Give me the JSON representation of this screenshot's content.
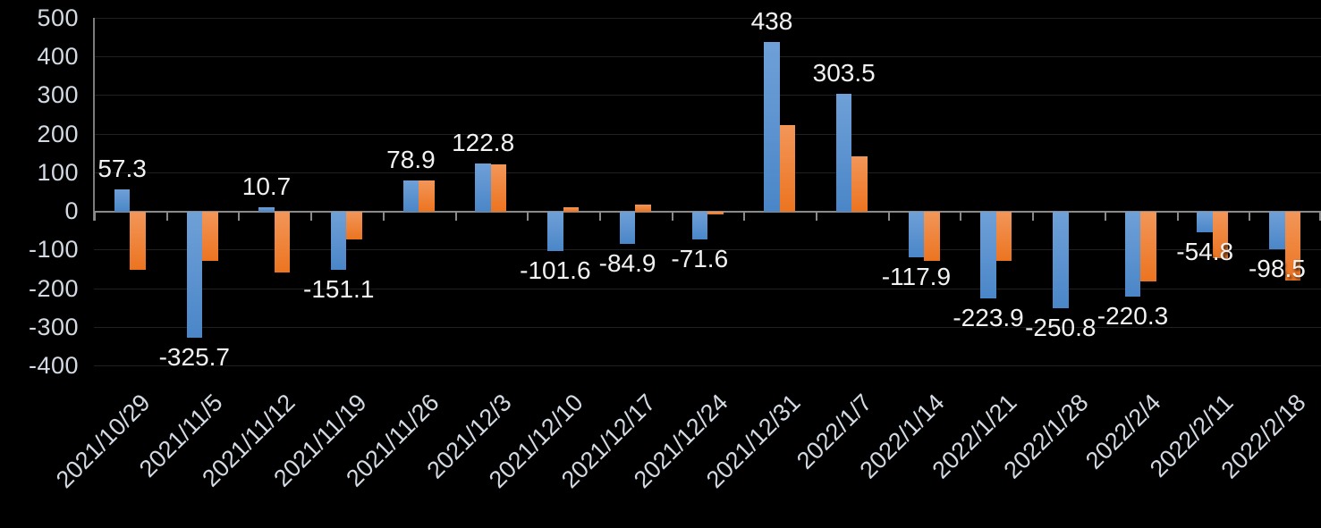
{
  "chart_data": {
    "type": "bar",
    "title": "",
    "xlabel": "",
    "ylabel": "",
    "categories": [
      "2021/10/29",
      "2021/11/5",
      "2021/11/12",
      "2021/11/19",
      "2021/11/26",
      "2021/12/3",
      "2021/12/10",
      "2021/12/17",
      "2021/12/24",
      "2021/12/31",
      "2022/1/7",
      "2022/1/14",
      "2022/1/21",
      "2022/1/28",
      "2022/2/4",
      "2022/2/11",
      "2022/2/18"
    ],
    "series": [
      {
        "name": "blue-series",
        "color_top": "#6FA0D7",
        "color_bottom": "#4A86C8",
        "values": [
          57.3,
          -325.7,
          10.7,
          -151.1,
          78.9,
          122.8,
          -101.6,
          -84.9,
          -71.6,
          438,
          303.5,
          -117.9,
          -223.9,
          -250.8,
          -220.3,
          -54.8,
          -98.5
        ],
        "data_labels": [
          "57.3",
          "-325.7",
          "10.7",
          "-151.1",
          "78.9",
          "122.8",
          "-101.6",
          "-84.9",
          "-71.6",
          "438",
          "303.5",
          "-117.9",
          "-223.9",
          "-250.8",
          "-220.3",
          "-54.8",
          "-98.5"
        ]
      },
      {
        "name": "orange-series",
        "color_top": "#F29659",
        "color_bottom": "#EC7420",
        "values": [
          -152,
          -128,
          -158,
          -73,
          80,
          122,
          10,
          18,
          -8,
          224,
          142,
          -128,
          -129,
          0,
          -182,
          -122,
          -179
        ],
        "data_labels": null
      }
    ],
    "ylim": [
      -400,
      500
    ],
    "ytick_step": 100,
    "ytick_labels": [
      "500",
      "400",
      "300",
      "200",
      "100",
      "0",
      "-100",
      "-200",
      "-300",
      "-400"
    ],
    "grid": true,
    "legend_position": "none",
    "background_color": "#000000",
    "axis_color": "#8A8A8A",
    "gridline_color": "#202020",
    "tick_label_color": "#D3DAE3",
    "data_label_color": "#F2F2F2"
  }
}
